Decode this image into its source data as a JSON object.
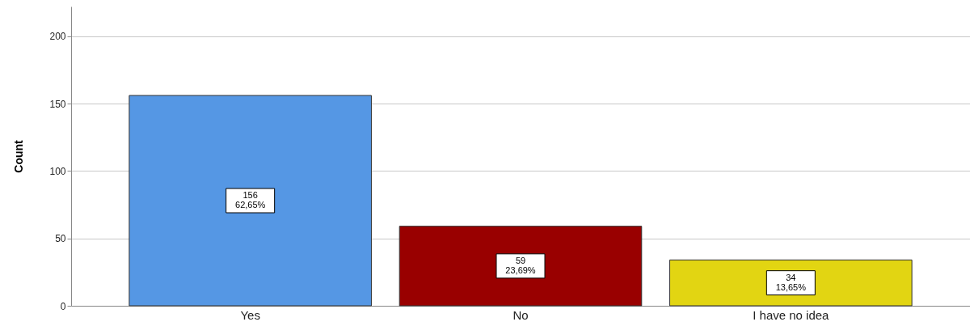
{
  "chart_data": {
    "type": "bar",
    "ylabel": "Count",
    "categories": [
      "Yes",
      "No",
      "I have no idea"
    ],
    "values": [
      156,
      59,
      34
    ],
    "colors": [
      "#5597e4",
      "#990000",
      "#e2d512"
    ],
    "value_labels": [
      "156\n62,65%",
      "59\n23,69%",
      "34\n13,65%"
    ],
    "ylim": [
      0,
      222
    ],
    "yticks": [
      0,
      50,
      100,
      150,
      200
    ],
    "grid": "y"
  }
}
